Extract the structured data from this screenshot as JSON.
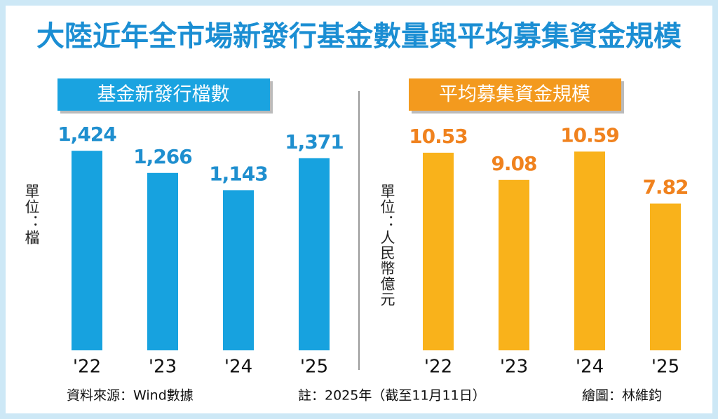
{
  "title": "大陸近年全市場新發行基金數量與平均募集資金規模",
  "source": "資料來源：Wind數據",
  "note": "註：2025年（截至11月11日）",
  "credit": "繪圖：林維鈞",
  "chart_data": [
    {
      "type": "bar",
      "title": "基金新發行檔數",
      "unit": "單位：檔",
      "categories": [
        "'22",
        "'23",
        "'24",
        "'25"
      ],
      "values": [
        1424,
        1266,
        1143,
        1371
      ],
      "value_labels": [
        "1,424",
        "1,266",
        "1,143",
        "1,371"
      ],
      "color": "#17a2df",
      "label_color": "#1f8fcf",
      "header_color": "#1aa3e0",
      "ylim": [
        0,
        1500
      ]
    },
    {
      "type": "bar",
      "title": "平均募集資金規模",
      "unit": "單位：人民幣億元",
      "categories": [
        "'22",
        "'23",
        "'24",
        "'25"
      ],
      "values": [
        10.53,
        9.08,
        10.59,
        7.82
      ],
      "color": "#f9b21b",
      "label_color": "#f0821e",
      "header_color": "#f39a1e",
      "ylim": [
        0,
        11.2
      ]
    }
  ]
}
